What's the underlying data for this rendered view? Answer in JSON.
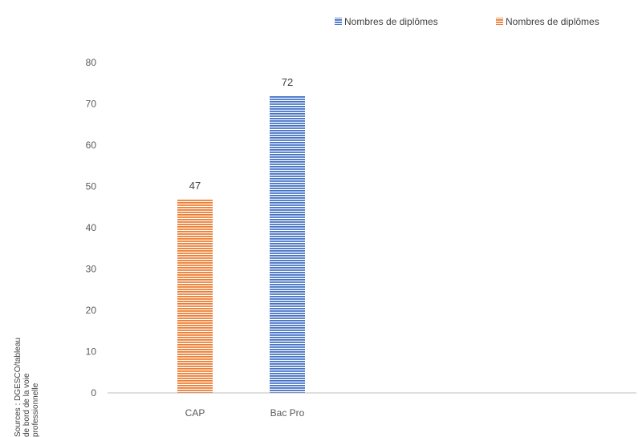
{
  "chart_data": {
    "type": "bar",
    "categories": [
      "CAP",
      "Bac Pro"
    ],
    "series": [
      {
        "name": "Nombres de diplômes",
        "color": "#4472c4",
        "values": [
          null,
          72
        ]
      },
      {
        "name": "Nombres de diplômes",
        "color": "#ed7d31",
        "values": [
          47,
          null
        ]
      }
    ],
    "ylim": [
      0,
      80
    ],
    "yticks": [
      0,
      10,
      20,
      30,
      40,
      50,
      60,
      70,
      80
    ],
    "data_labels": true,
    "grid": false,
    "legend": "top-right",
    "bar_fill": "horizontal-hatch",
    "source_note": [
      "Sources : DGESCO/tableau",
      "de bord de la voie",
      "professionnelle"
    ]
  }
}
